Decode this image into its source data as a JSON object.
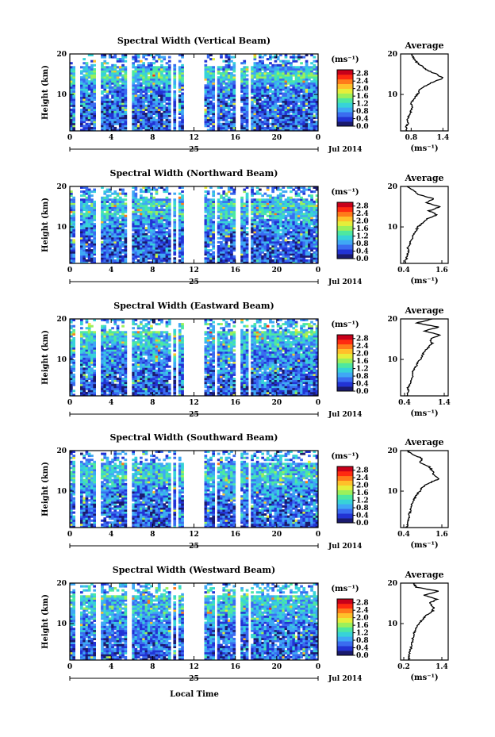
{
  "figure": {
    "x_axis_title": "Local Time"
  },
  "colorscale": [
    "#1a1a6e",
    "#2233d4",
    "#3a6cf0",
    "#3fa8f5",
    "#37d3d8",
    "#4ee8a0",
    "#9cf05a",
    "#e6ee3a",
    "#ffc02a",
    "#ff7a1a",
    "#ff2a10",
    "#c8001a"
  ],
  "chart_data": [
    {
      "type": "heatmap",
      "title": "Spectral Width (Vertical Beam)",
      "ylabel": "Height (km)",
      "y_ticks": [
        "10",
        "20"
      ],
      "ylim": [
        1,
        20
      ],
      "x_ticks": [
        "0",
        "4",
        "8",
        "12",
        "16",
        "20",
        "0"
      ],
      "xlim": [
        0,
        24
      ],
      "date_day": "25",
      "date_month_year": "Jul 2014",
      "colorbar": {
        "unit": "(ms⁻¹)",
        "ticks": [
          "0.0",
          "0.4",
          "0.8",
          "1.2",
          "1.6",
          "2.0",
          "2.4",
          "2.8"
        ],
        "range": [
          0,
          3.0
        ]
      },
      "gaps_hours": [
        [
          0.6,
          0.9
        ],
        [
          2.6,
          3.1
        ],
        [
          5.5,
          5.9
        ],
        [
          9.7,
          9.9
        ],
        [
          10.3,
          10.6
        ],
        [
          11.0,
          13.0
        ],
        [
          14.0,
          14.3
        ],
        [
          16.0,
          16.4
        ],
        [
          17.2,
          17.6
        ]
      ],
      "profile": {
        "title": "Average",
        "xlabel": "(ms⁻¹)",
        "x_ticks": [
          "0.8",
          "1.4"
        ],
        "xlim": [
          0.6,
          1.5
        ],
        "y_ticks": [
          "10",
          "20"
        ],
        "heights": [
          1,
          2,
          3,
          4,
          5,
          6,
          7,
          8,
          9,
          10,
          11,
          12,
          13,
          14,
          15,
          16,
          17,
          18,
          19,
          20
        ],
        "values": [
          0.72,
          0.7,
          0.75,
          0.72,
          0.78,
          0.8,
          0.82,
          0.8,
          0.86,
          0.92,
          0.95,
          1.05,
          1.2,
          1.4,
          1.28,
          1.1,
          1.0,
          0.9,
          0.84,
          0.8
        ]
      }
    },
    {
      "type": "heatmap",
      "title": "Spectral Width (Northward Beam)",
      "ylabel": "Height (km)",
      "y_ticks": [
        "10",
        "20"
      ],
      "ylim": [
        1,
        20
      ],
      "x_ticks": [
        "0",
        "4",
        "8",
        "12",
        "16",
        "20",
        "0"
      ],
      "xlim": [
        0,
        24
      ],
      "date_day": "25",
      "date_month_year": "Jul 2014",
      "colorbar": {
        "unit": "(ms⁻¹)",
        "ticks": [
          "0.0",
          "0.4",
          "0.8",
          "1.2",
          "1.6",
          "2.0",
          "2.4",
          "2.8"
        ],
        "range": [
          0,
          3.0
        ]
      },
      "gaps_hours": [
        [
          0.6,
          0.9
        ],
        [
          2.6,
          3.1
        ],
        [
          5.5,
          5.9
        ],
        [
          9.7,
          9.9
        ],
        [
          10.3,
          10.6
        ],
        [
          11.0,
          13.0
        ],
        [
          14.0,
          14.3
        ],
        [
          16.0,
          16.4
        ],
        [
          17.2,
          17.6
        ]
      ],
      "profile": {
        "title": "Average",
        "xlabel": "(ms⁻¹)",
        "x_ticks": [
          "0.4",
          "1.6"
        ],
        "xlim": [
          0.3,
          1.8
        ],
        "y_ticks": [
          "10",
          "20"
        ],
        "heights": [
          1,
          2,
          3,
          4,
          5,
          6,
          7,
          8,
          9,
          10,
          11,
          12,
          13,
          14,
          15,
          16,
          17,
          18,
          19,
          20
        ],
        "values": [
          0.45,
          0.48,
          0.5,
          0.55,
          0.52,
          0.6,
          0.65,
          0.7,
          0.78,
          0.85,
          1.0,
          1.15,
          1.45,
          1.2,
          1.55,
          1.1,
          1.35,
          0.85,
          0.7,
          0.5
        ]
      }
    },
    {
      "type": "heatmap",
      "title": "Spectral Width (Eastward Beam)",
      "ylabel": "Height (km)",
      "y_ticks": [
        "10",
        "20"
      ],
      "ylim": [
        1,
        20
      ],
      "x_ticks": [
        "0",
        "4",
        "8",
        "12",
        "16",
        "20",
        "0"
      ],
      "xlim": [
        0,
        24
      ],
      "date_day": "25",
      "date_month_year": "Jul 2014",
      "colorbar": {
        "unit": "(ms⁻¹)",
        "ticks": [
          "0.0",
          "0.4",
          "0.8",
          "1.2",
          "1.6",
          "2.0",
          "2.4",
          "2.8"
        ],
        "range": [
          0,
          3.0
        ]
      },
      "gaps_hours": [
        [
          0.6,
          0.9
        ],
        [
          2.6,
          3.1
        ],
        [
          5.5,
          5.9
        ],
        [
          9.7,
          9.9
        ],
        [
          10.3,
          10.6
        ],
        [
          11.0,
          13.0
        ],
        [
          14.0,
          14.3
        ],
        [
          16.0,
          16.4
        ],
        [
          17.2,
          17.6
        ]
      ],
      "profile": {
        "title": "Average",
        "xlabel": "(ms⁻¹)",
        "x_ticks": [
          "0.4",
          "1.4"
        ],
        "xlim": [
          0.3,
          1.5
        ],
        "y_ticks": [
          "10",
          "20"
        ],
        "heights": [
          1,
          2,
          3,
          4,
          5,
          6,
          7,
          8,
          9,
          10,
          11,
          12,
          13,
          14,
          15,
          16,
          17,
          18,
          19,
          20
        ],
        "values": [
          0.45,
          0.5,
          0.48,
          0.55,
          0.58,
          0.6,
          0.62,
          0.68,
          0.72,
          0.8,
          0.85,
          0.9,
          1.0,
          1.1,
          1.05,
          1.3,
          0.9,
          1.25,
          0.7,
          1.1
        ]
      }
    },
    {
      "type": "heatmap",
      "title": "Spectral Width (Southward Beam)",
      "ylabel": "Height (km)",
      "y_ticks": [
        "10",
        "20"
      ],
      "ylim": [
        1,
        20
      ],
      "x_ticks": [
        "0",
        "4",
        "8",
        "12",
        "16",
        "20",
        "0"
      ],
      "xlim": [
        0,
        24
      ],
      "date_day": "25",
      "date_month_year": "Jul 2014",
      "colorbar": {
        "unit": "(ms⁻¹)",
        "ticks": [
          "0.0",
          "0.4",
          "0.8",
          "1.2",
          "1.6",
          "2.0",
          "2.4",
          "2.8"
        ],
        "range": [
          0,
          3.0
        ]
      },
      "gaps_hours": [
        [
          0.6,
          0.9
        ],
        [
          2.6,
          3.1
        ],
        [
          5.5,
          5.9
        ],
        [
          9.7,
          9.9
        ],
        [
          10.3,
          10.6
        ],
        [
          11.0,
          13.0
        ],
        [
          14.0,
          14.3
        ],
        [
          16.0,
          16.4
        ],
        [
          17.2,
          17.6
        ]
      ],
      "profile": {
        "title": "Average",
        "xlabel": "(ms⁻¹)",
        "x_ticks": [
          "0.4",
          "1.6"
        ],
        "xlim": [
          0.3,
          1.8
        ],
        "y_ticks": [
          "10",
          "20"
        ],
        "heights": [
          1,
          2,
          3,
          4,
          5,
          6,
          7,
          8,
          9,
          10,
          11,
          12,
          13,
          14,
          15,
          16,
          17,
          18,
          19,
          20
        ],
        "values": [
          0.5,
          0.52,
          0.55,
          0.56,
          0.6,
          0.62,
          0.68,
          0.72,
          0.8,
          0.9,
          1.0,
          1.2,
          1.5,
          1.35,
          1.3,
          1.2,
          0.9,
          1.0,
          0.7,
          0.5
        ]
      }
    },
    {
      "type": "heatmap",
      "title": "Spectral Width (Westward Beam)",
      "ylabel": "Height (km)",
      "y_ticks": [
        "10",
        "20"
      ],
      "ylim": [
        1,
        20
      ],
      "x_ticks": [
        "0",
        "4",
        "8",
        "12",
        "16",
        "20",
        "0"
      ],
      "xlim": [
        0,
        24
      ],
      "date_day": "25",
      "date_month_year": "Jul 2014",
      "colorbar": {
        "unit": "(ms⁻¹)",
        "ticks": [
          "0.0",
          "0.4",
          "0.8",
          "1.2",
          "1.6",
          "2.0",
          "2.4",
          "2.8"
        ],
        "range": [
          0,
          3.0
        ]
      },
      "gaps_hours": [
        [
          0.6,
          0.9
        ],
        [
          2.6,
          3.1
        ],
        [
          5.5,
          5.9
        ],
        [
          9.7,
          9.9
        ],
        [
          10.3,
          10.6
        ],
        [
          11.0,
          13.0
        ],
        [
          14.0,
          14.3
        ],
        [
          16.0,
          16.4
        ],
        [
          17.2,
          17.6
        ]
      ],
      "profile": {
        "title": "Average",
        "xlabel": "(ms⁻¹)",
        "x_ticks": [
          "0.2",
          "1.4"
        ],
        "xlim": [
          0.1,
          1.6
        ],
        "y_ticks": [
          "10",
          "20"
        ],
        "heights": [
          1,
          2,
          3,
          4,
          5,
          6,
          7,
          8,
          9,
          10,
          11,
          12,
          13,
          14,
          15,
          16,
          17,
          18,
          19,
          20
        ],
        "values": [
          0.35,
          0.38,
          0.4,
          0.42,
          0.45,
          0.48,
          0.5,
          0.55,
          0.6,
          0.68,
          0.78,
          0.9,
          1.1,
          1.15,
          1.0,
          1.25,
          0.85,
          1.3,
          0.6,
          0.5
        ]
      }
    }
  ]
}
